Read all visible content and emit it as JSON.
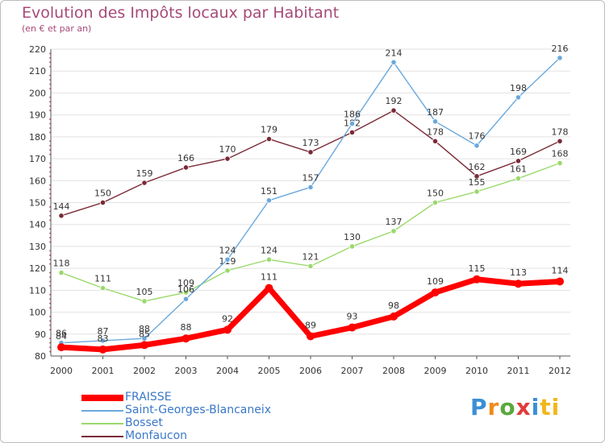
{
  "header": {
    "title": "Evolution des Impôts locaux par Habitant",
    "subtitle": "(en € et par an)"
  },
  "brand": {
    "logo_letters": [
      "P",
      "r",
      "o",
      "x",
      "i",
      "ti"
    ]
  },
  "chart_data": {
    "type": "line",
    "title": "Evolution des Impôts locaux par Habitant",
    "subtitle": "(en € et par an)",
    "xlabel": "",
    "ylabel": "",
    "ylim": [
      80,
      220
    ],
    "yticks": [
      80,
      90,
      100,
      110,
      120,
      130,
      140,
      150,
      160,
      170,
      180,
      190,
      200,
      210,
      220
    ],
    "grid": true,
    "legend_position": "bottom-left",
    "categories": [
      "2000",
      "2001",
      "2002",
      "2003",
      "2004",
      "2005",
      "2006",
      "2007",
      "2008",
      "2009",
      "2010",
      "2011",
      "2012"
    ],
    "series": [
      {
        "name": "Monfaucon",
        "color": "#7a2a36",
        "values": [
          144,
          150,
          159,
          166,
          170,
          179,
          173,
          182,
          192,
          178,
          162,
          169,
          178
        ]
      },
      {
        "name": "Bosset",
        "color": "#9ad96a",
        "values": [
          118,
          111,
          105,
          109,
          119,
          124,
          121,
          130,
          137,
          150,
          155,
          161,
          168
        ]
      },
      {
        "name": "Saint-Georges-Blancaneix",
        "color": "#6aa8dc",
        "values": [
          86,
          87,
          88,
          106,
          124,
          151,
          157,
          186,
          214,
          187,
          176,
          198,
          216
        ]
      },
      {
        "name": "FRAISSE",
        "color": "#ff0000",
        "values": [
          84,
          83,
          85,
          88,
          92,
          111,
          89,
          93,
          98,
          109,
          115,
          113,
          114
        ]
      }
    ],
    "legend_order": [
      "FRAISSE",
      "Saint-Georges-Blancaneix",
      "Bosset",
      "Monfaucon"
    ]
  }
}
